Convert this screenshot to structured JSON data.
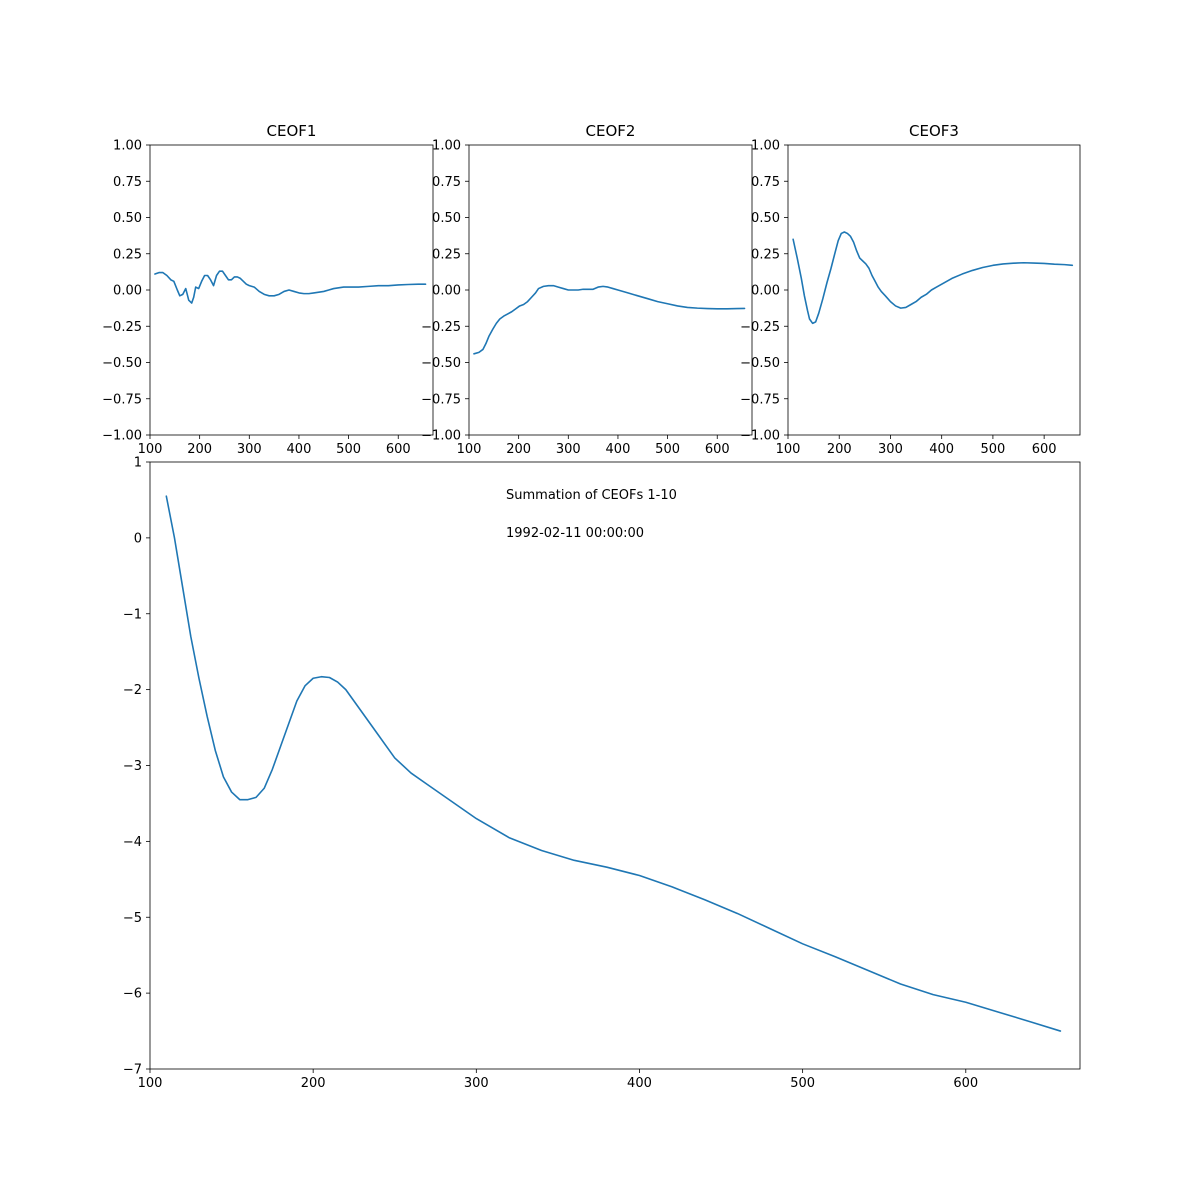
{
  "chart_data": [
    {
      "type": "line",
      "title": "CEOF1",
      "xlim": [
        100,
        670
      ],
      "ylim": [
        -1.0,
        1.0
      ],
      "xticks": [
        100,
        200,
        300,
        400,
        500,
        600
      ],
      "yticks": [
        -1.0,
        -0.75,
        -0.5,
        -0.25,
        0.0,
        0.25,
        0.5,
        0.75,
        1.0
      ],
      "ytick_labels": [
        "−1.00",
        "−0.75",
        "−0.50",
        "−0.25",
        "0.00",
        "0.25",
        "0.50",
        "0.75",
        "1.00"
      ],
      "series": [
        {
          "color": "#1f77b4",
          "x": [
            110,
            118,
            126,
            134,
            142,
            148,
            155,
            160,
            166,
            172,
            178,
            184,
            188,
            192,
            198,
            204,
            210,
            216,
            222,
            228,
            234,
            240,
            246,
            252,
            258,
            264,
            270,
            276,
            282,
            288,
            294,
            300,
            310,
            320,
            330,
            340,
            350,
            360,
            370,
            380,
            390,
            400,
            410,
            420,
            430,
            440,
            450,
            460,
            470,
            480,
            490,
            500,
            520,
            540,
            560,
            580,
            600,
            620,
            640,
            655
          ],
          "y": [
            0.11,
            0.12,
            0.12,
            0.1,
            0.07,
            0.06,
            0.0,
            -0.04,
            -0.03,
            0.01,
            -0.07,
            -0.09,
            -0.05,
            0.02,
            0.01,
            0.06,
            0.1,
            0.1,
            0.07,
            0.03,
            0.1,
            0.13,
            0.13,
            0.1,
            0.07,
            0.07,
            0.09,
            0.09,
            0.08,
            0.06,
            0.04,
            0.03,
            0.02,
            -0.01,
            -0.03,
            -0.04,
            -0.04,
            -0.03,
            -0.01,
            0.0,
            -0.01,
            -0.02,
            -0.025,
            -0.025,
            -0.02,
            -0.015,
            -0.01,
            0.0,
            0.01,
            0.015,
            0.02,
            0.02,
            0.02,
            0.025,
            0.03,
            0.03,
            0.035,
            0.038,
            0.04,
            0.04
          ]
        }
      ]
    },
    {
      "type": "line",
      "title": "CEOF2",
      "xlim": [
        100,
        670
      ],
      "ylim": [
        -1.0,
        1.0
      ],
      "xticks": [
        100,
        200,
        300,
        400,
        500,
        600
      ],
      "yticks": [
        -1.0,
        -0.75,
        -0.5,
        -0.25,
        0.0,
        0.25,
        0.5,
        0.75,
        1.0
      ],
      "ytick_labels": [
        "−1.00",
        "−0.75",
        "−0.50",
        "−0.25",
        "0.00",
        "0.25",
        "0.50",
        "0.75",
        "1.00"
      ],
      "series": [
        {
          "color": "#1f77b4",
          "x": [
            110,
            120,
            128,
            134,
            140,
            148,
            155,
            162,
            170,
            178,
            186,
            194,
            202,
            210,
            218,
            226,
            234,
            240,
            250,
            260,
            270,
            280,
            290,
            300,
            310,
            320,
            330,
            340,
            350,
            360,
            370,
            380,
            390,
            400,
            420,
            440,
            460,
            480,
            500,
            520,
            540,
            560,
            580,
            600,
            620,
            640,
            655
          ],
          "y": [
            -0.44,
            -0.43,
            -0.41,
            -0.37,
            -0.32,
            -0.27,
            -0.23,
            -0.2,
            -0.18,
            -0.165,
            -0.15,
            -0.13,
            -0.11,
            -0.1,
            -0.08,
            -0.05,
            -0.02,
            0.01,
            0.025,
            0.03,
            0.03,
            0.02,
            0.01,
            0.0,
            0.0,
            0.0,
            0.005,
            0.005,
            0.005,
            0.02,
            0.025,
            0.02,
            0.01,
            0.0,
            -0.02,
            -0.04,
            -0.06,
            -0.08,
            -0.095,
            -0.11,
            -0.12,
            -0.125,
            -0.128,
            -0.13,
            -0.13,
            -0.128,
            -0.127
          ]
        }
      ]
    },
    {
      "type": "line",
      "title": "CEOF3",
      "xlim": [
        100,
        670
      ],
      "ylim": [
        -1.0,
        1.0
      ],
      "xticks": [
        100,
        200,
        300,
        400,
        500,
        600
      ],
      "yticks": [
        -1.0,
        -0.75,
        -0.5,
        -0.25,
        0.0,
        0.25,
        0.5,
        0.75,
        1.0
      ],
      "ytick_labels": [
        "−1.00",
        "−0.75",
        "−0.50",
        "−0.25",
        "0.00",
        "0.25",
        "0.50",
        "0.75",
        "1.00"
      ],
      "series": [
        {
          "color": "#1f77b4",
          "x": [
            110,
            118,
            126,
            132,
            138,
            142,
            148,
            154,
            160,
            168,
            176,
            184,
            192,
            198,
            204,
            210,
            216,
            222,
            228,
            234,
            240,
            246,
            252,
            258,
            264,
            270,
            276,
            282,
            290,
            300,
            310,
            320,
            330,
            340,
            350,
            360,
            370,
            380,
            390,
            400,
            420,
            440,
            460,
            480,
            500,
            520,
            540,
            560,
            580,
            600,
            620,
            640,
            655
          ],
          "y": [
            0.35,
            0.22,
            0.08,
            -0.04,
            -0.14,
            -0.2,
            -0.23,
            -0.22,
            -0.16,
            -0.06,
            0.05,
            0.15,
            0.26,
            0.34,
            0.39,
            0.4,
            0.39,
            0.37,
            0.33,
            0.27,
            0.22,
            0.2,
            0.18,
            0.15,
            0.1,
            0.06,
            0.02,
            -0.01,
            -0.04,
            -0.08,
            -0.11,
            -0.125,
            -0.12,
            -0.1,
            -0.08,
            -0.05,
            -0.03,
            0.0,
            0.02,
            0.04,
            0.08,
            0.11,
            0.135,
            0.155,
            0.17,
            0.18,
            0.185,
            0.188,
            0.186,
            0.183,
            0.178,
            0.175,
            0.17
          ]
        }
      ]
    },
    {
      "type": "line",
      "title": "",
      "xlim": [
        100,
        670
      ],
      "ylim": [
        -7,
        1
      ],
      "xticks": [
        100,
        200,
        300,
        400,
        500,
        600
      ],
      "yticks": [
        -7,
        -6,
        -5,
        -4,
        -3,
        -2,
        -1,
        0,
        1
      ],
      "ytick_labels": [
        "−7",
        "−6",
        "−5",
        "−4",
        "−3",
        "−2",
        "−1",
        "0",
        "1"
      ],
      "annotations": [
        "Summation of CEOFs 1-10",
        "1992-02-11 00:00:00"
      ],
      "series": [
        {
          "color": "#1f77b4",
          "x": [
            110,
            115,
            120,
            125,
            130,
            135,
            140,
            145,
            150,
            155,
            160,
            165,
            170,
            175,
            180,
            185,
            190,
            195,
            200,
            205,
            210,
            215,
            220,
            225,
            230,
            240,
            250,
            260,
            270,
            280,
            290,
            300,
            320,
            340,
            360,
            380,
            400,
            420,
            440,
            460,
            480,
            500,
            520,
            540,
            560,
            580,
            600,
            620,
            640,
            658
          ],
          "y": [
            0.55,
            0.0,
            -0.65,
            -1.3,
            -1.85,
            -2.35,
            -2.8,
            -3.15,
            -3.35,
            -3.45,
            -3.45,
            -3.42,
            -3.3,
            -3.05,
            -2.75,
            -2.45,
            -2.15,
            -1.95,
            -1.85,
            -1.83,
            -1.84,
            -1.9,
            -2.0,
            -2.15,
            -2.3,
            -2.6,
            -2.9,
            -3.1,
            -3.25,
            -3.4,
            -3.55,
            -3.7,
            -3.95,
            -4.12,
            -4.25,
            -4.34,
            -4.45,
            -4.6,
            -4.77,
            -4.95,
            -5.15,
            -5.35,
            -5.52,
            -5.7,
            -5.88,
            -6.02,
            -6.12,
            -6.25,
            -6.38,
            -6.5
          ]
        }
      ]
    }
  ]
}
